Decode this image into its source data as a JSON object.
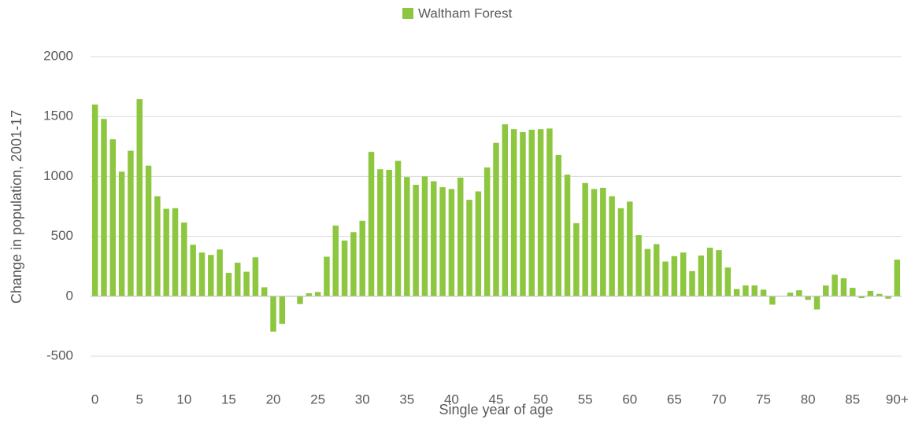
{
  "chart_data": {
    "type": "bar",
    "legend": "Waltham Forest",
    "color": "#8dc63f",
    "xlabel": "Single year of age",
    "ylabel": "Change in population, 2001-17",
    "categories": [
      "0",
      null,
      null,
      null,
      null,
      "5",
      null,
      null,
      null,
      null,
      "10",
      null,
      null,
      null,
      null,
      "15",
      null,
      null,
      null,
      null,
      "20",
      null,
      null,
      null,
      null,
      "25",
      null,
      null,
      null,
      null,
      "30",
      null,
      null,
      null,
      null,
      "35",
      null,
      null,
      null,
      null,
      "40",
      null,
      null,
      null,
      null,
      "45",
      null,
      null,
      null,
      null,
      "50",
      null,
      null,
      null,
      null,
      "55",
      null,
      null,
      null,
      null,
      "60",
      null,
      null,
      null,
      null,
      "65",
      null,
      null,
      null,
      null,
      "70",
      null,
      null,
      null,
      null,
      "75",
      null,
      null,
      null,
      null,
      "80",
      null,
      null,
      null,
      null,
      "85",
      null,
      null,
      null,
      null,
      "90+"
    ],
    "values": [
      1600,
      1480,
      1310,
      1040,
      1215,
      1645,
      1090,
      835,
      730,
      735,
      615,
      430,
      365,
      345,
      390,
      195,
      280,
      205,
      325,
      75,
      -295,
      -230,
      0,
      -65,
      25,
      35,
      330,
      590,
      465,
      535,
      630,
      1205,
      1060,
      1055,
      1130,
      995,
      930,
      1000,
      960,
      910,
      895,
      990,
      805,
      875,
      1075,
      1280,
      1435,
      1395,
      1370,
      1390,
      1395,
      1400,
      1180,
      1015,
      610,
      945,
      895,
      905,
      835,
      735,
      790,
      510,
      395,
      435,
      290,
      335,
      365,
      210,
      340,
      405,
      385,
      240,
      60,
      90,
      90,
      55,
      -70,
      0,
      30,
      50,
      -30,
      -110,
      90,
      180,
      150,
      70,
      -15,
      45,
      20,
      -20,
      305
    ],
    "ylim": [
      -500,
      2000
    ],
    "yticks": [
      -500,
      0,
      500,
      1000,
      1500,
      2000
    ],
    "grid": true
  }
}
